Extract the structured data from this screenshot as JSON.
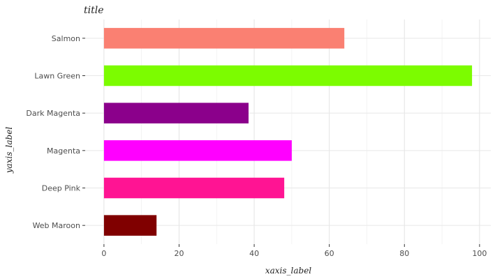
{
  "chart_data": {
    "type": "bar",
    "orientation": "horizontal",
    "title": "title",
    "xlabel": "xaxis_label",
    "ylabel": "yaxis_label",
    "categories": [
      "Web Maroon",
      "Deep Pink",
      "Magenta",
      "Dark Magenta",
      "Lawn Green",
      "Salmon"
    ],
    "values": [
      14,
      48,
      50,
      38.5,
      98,
      64
    ],
    "colors": [
      "#800000",
      "#ff1493",
      "#ff00ff",
      "#8b008b",
      "#7cfc00",
      "#fa8072"
    ],
    "xlim": [
      -5,
      103
    ],
    "xticks": [
      0,
      20,
      40,
      60,
      80,
      100
    ],
    "xtick_labels": [
      "0",
      "20",
      "40",
      "60",
      "80",
      "100"
    ],
    "grid": true,
    "legend": false
  }
}
